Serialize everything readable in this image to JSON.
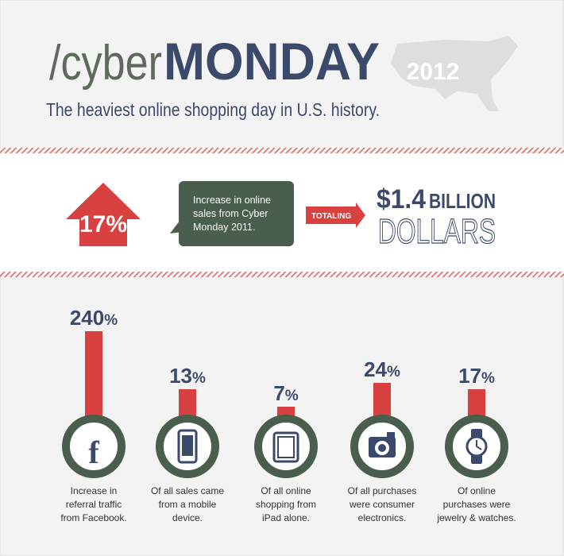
{
  "header": {
    "prefix": "/cyber",
    "title": "MONDAY",
    "year": "2012",
    "subtitle": "The heaviest online shopping day in U.S. history."
  },
  "summary": {
    "increase": "17%",
    "description": [
      "Increase in online",
      "sales from Cyber",
      "Monday 2011."
    ],
    "connector": "TOTALING",
    "amount": "$1.4",
    "amount_unit": "BILLION",
    "amount_word": "DOLLARS"
  },
  "stats": [
    {
      "number": "240",
      "suffix": "%",
      "caption": [
        "Increase in",
        "referral traffic",
        "from Facebook."
      ]
    },
    {
      "number": "13",
      "suffix": "%",
      "caption": [
        "Of all sales came",
        "from a mobile",
        "device."
      ]
    },
    {
      "number": "7",
      "suffix": "%",
      "caption": [
        "Of all online",
        "shopping from",
        "iPad alone."
      ]
    },
    {
      "number": "24",
      "suffix": "%",
      "caption": [
        "Of all purchases",
        "were consumer",
        "electronics."
      ]
    },
    {
      "number": "17",
      "suffix": "%",
      "caption": [
        "Of online",
        "purchases were",
        "jewelry & watches."
      ]
    }
  ]
}
